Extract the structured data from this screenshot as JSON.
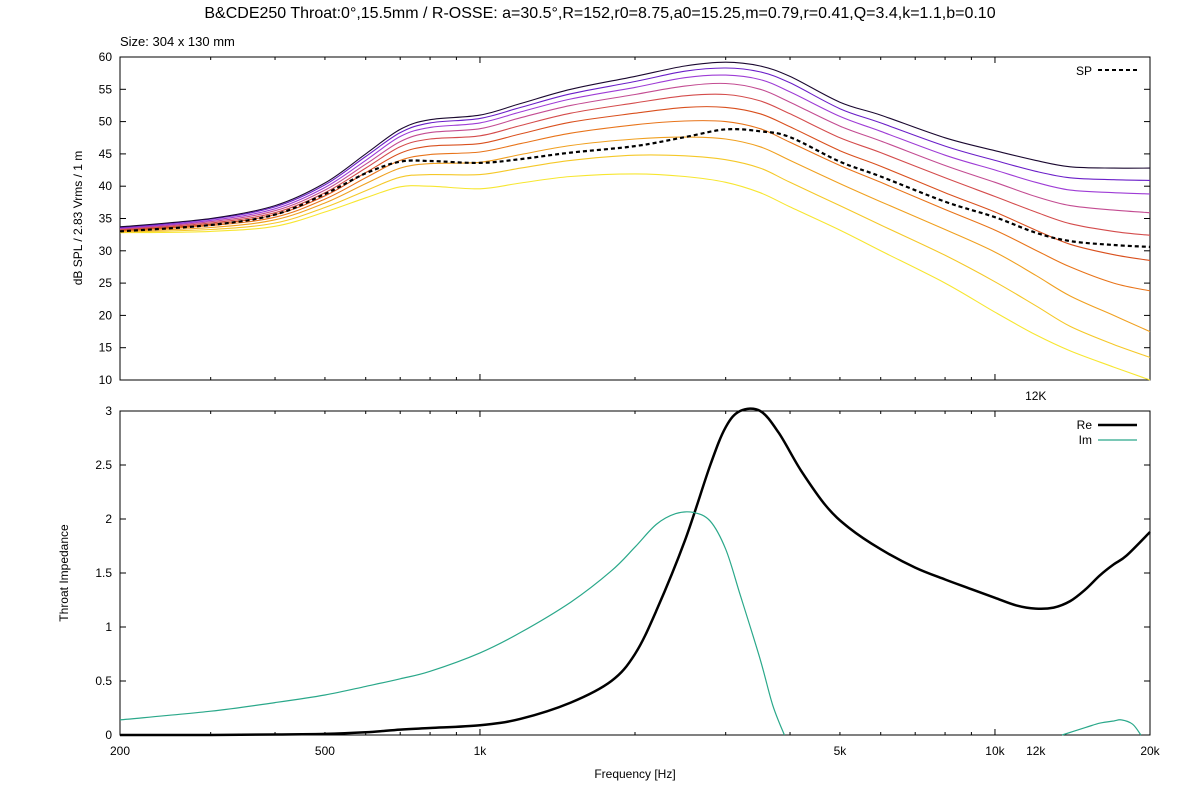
{
  "chart_data": [
    {
      "type": "line",
      "title": "B&CDE250 Throat:0°,15.5mm / R-OSSE: a=30.5°,R=152,r0=8.75,a0=15.25,m=0.79,r=0.41,Q=3.4,k=1.1,b=0.10",
      "subtitle": "Size: 304 x 130 mm",
      "ylabel": "dB SPL / 2.83 Vrms / 1 m",
      "xlabel": "",
      "x_scale": "log",
      "xlim": [
        200,
        20000
      ],
      "ylim": [
        10,
        60
      ],
      "y_ticks": [
        "10",
        "15",
        "20",
        "25",
        "30",
        "35",
        "40",
        "45",
        "50",
        "55",
        "60"
      ],
      "x_tick_labels": [
        {
          "x": 12000,
          "label": "12K"
        }
      ],
      "legend": {
        "position": "top-right",
        "entries": [
          "SP"
        ]
      },
      "x": [
        200,
        300,
        400,
        500,
        600,
        700,
        800,
        1000,
        1200,
        1500,
        2000,
        2500,
        3000,
        3500,
        4000,
        5000,
        6000,
        8000,
        10000,
        12000,
        14000,
        17000,
        20000
      ],
      "series": [
        {
          "name": "",
          "color": "#1a0830",
          "values": [
            33.7,
            35.0,
            37.0,
            40.5,
            45.0,
            48.8,
            50.3,
            51.0,
            52.8,
            55.0,
            57.0,
            58.6,
            59.2,
            58.6,
            57.0,
            53.0,
            51.0,
            47.5,
            45.5,
            44.0,
            43.0,
            42.8,
            42.8
          ]
        },
        {
          "name": "",
          "color": "#6a1ec8",
          "values": [
            33.6,
            34.9,
            36.8,
            40.2,
            44.6,
            48.3,
            49.8,
            50.5,
            52.2,
            54.3,
            56.2,
            57.8,
            58.3,
            57.7,
            56.0,
            52.0,
            49.8,
            46.2,
            44.0,
            42.3,
            41.3,
            41.0,
            40.9
          ]
        },
        {
          "name": "",
          "color": "#9e3cd6",
          "values": [
            33.5,
            34.7,
            36.5,
            39.8,
            44.0,
            47.7,
            49.1,
            49.8,
            51.5,
            53.5,
            55.3,
            56.8,
            57.2,
            56.5,
            54.6,
            50.8,
            48.5,
            44.8,
            42.5,
            40.6,
            39.4,
            39.0,
            38.8
          ]
        },
        {
          "name": "",
          "color": "#c34c92",
          "values": [
            33.4,
            34.5,
            36.2,
            39.4,
            43.4,
            46.9,
            48.3,
            48.9,
            50.6,
            52.5,
            54.2,
            55.5,
            55.9,
            55.0,
            53.0,
            49.3,
            47.0,
            43.2,
            40.6,
            38.4,
            37.0,
            36.3,
            35.9
          ]
        },
        {
          "name": "",
          "color": "#d44c4c",
          "values": [
            33.3,
            34.3,
            35.9,
            39.0,
            42.8,
            46.1,
            47.3,
            47.8,
            49.4,
            51.3,
            52.9,
            54.0,
            54.2,
            53.2,
            51.2,
            47.5,
            45.2,
            41.3,
            38.4,
            36.0,
            34.2,
            33.0,
            32.4
          ]
        },
        {
          "name": "",
          "color": "#d9501e",
          "values": [
            33.2,
            34.1,
            35.6,
            38.5,
            42.1,
            45.1,
            46.2,
            46.6,
            48.1,
            49.9,
            51.3,
            52.2,
            52.2,
            51.2,
            49.2,
            45.5,
            43.1,
            39.0,
            36.0,
            33.2,
            31.0,
            29.4,
            28.5
          ]
        },
        {
          "name": "",
          "color": "#e8741a",
          "values": [
            33.1,
            33.9,
            35.2,
            38.0,
            41.3,
            44.0,
            44.9,
            45.3,
            46.6,
            48.2,
            49.5,
            50.1,
            50.0,
            48.9,
            46.8,
            43.2,
            40.6,
            36.4,
            33.2,
            30.1,
            27.5,
            25.0,
            23.8
          ]
        },
        {
          "name": "",
          "color": "#f0a020",
          "values": [
            33.0,
            33.6,
            34.8,
            37.4,
            40.4,
            42.8,
            43.5,
            43.7,
            44.9,
            46.3,
            47.3,
            47.6,
            47.3,
            46.1,
            44.0,
            40.4,
            37.6,
            33.3,
            29.8,
            26.2,
            23.0,
            20.0,
            17.5
          ]
        },
        {
          "name": "",
          "color": "#f5c828",
          "values": [
            32.9,
            33.3,
            34.3,
            36.7,
            39.3,
            41.4,
            41.8,
            41.8,
            42.8,
            44.0,
            44.8,
            44.7,
            44.1,
            42.8,
            40.6,
            37.0,
            34.0,
            29.3,
            25.2,
            21.5,
            18.3,
            15.5,
            13.5
          ]
        },
        {
          "name": "",
          "color": "#f7e630",
          "values": [
            32.8,
            33.0,
            33.8,
            36.0,
            38.2,
            39.9,
            40.0,
            39.6,
            40.5,
            41.5,
            41.9,
            41.5,
            40.6,
            39.0,
            36.8,
            33.2,
            30.0,
            25.0,
            20.5,
            17.0,
            14.5,
            12.0,
            10.0
          ]
        }
      ],
      "sp_series": {
        "name": "SP",
        "values": [
          33.0,
          34.0,
          35.6,
          38.8,
          42.0,
          43.8,
          43.9,
          43.6,
          44.2,
          45.2,
          46.2,
          47.6,
          48.8,
          48.5,
          47.6,
          43.8,
          41.5,
          37.6,
          35.2,
          32.8,
          31.5,
          30.9,
          30.6
        ]
      }
    },
    {
      "type": "line",
      "title": "",
      "xlabel": "Frequency [Hz]",
      "ylabel": "Throat Impedance",
      "x_scale": "log",
      "xlim": [
        200,
        20000
      ],
      "ylim": [
        0,
        3
      ],
      "y_ticks": [
        "0",
        "0.5",
        "1",
        "1.5",
        "2",
        "2.5",
        "3"
      ],
      "x_tick_labels": [
        {
          "x": 200,
          "label": "200"
        },
        {
          "x": 500,
          "label": "500"
        },
        {
          "x": 1000,
          "label": "1k"
        },
        {
          "x": 5000,
          "label": "5k"
        },
        {
          "x": 10000,
          "label": "10k"
        },
        {
          "x": 12000,
          "label": "12k"
        },
        {
          "x": 20000,
          "label": "20k"
        }
      ],
      "legend": {
        "position": "top-right",
        "entries": [
          "Re",
          "Im"
        ]
      },
      "series": [
        {
          "name": "Re",
          "color": "#000000",
          "x": [
            200,
            300,
            400,
            500,
            600,
            700,
            800,
            1000,
            1200,
            1500,
            1800,
            2000,
            2200,
            2500,
            2800,
            3000,
            3200,
            3500,
            3800,
            4200,
            4700,
            5200,
            6000,
            7000,
            8000,
            9000,
            10000,
            11000,
            12000,
            13000,
            14000,
            15000,
            16000,
            17000,
            18000,
            20000
          ],
          "values": [
            0.0,
            0.0,
            0.005,
            0.01,
            0.025,
            0.05,
            0.065,
            0.09,
            0.15,
            0.3,
            0.5,
            0.75,
            1.15,
            1.8,
            2.5,
            2.85,
            3.02,
            3.02,
            2.8,
            2.45,
            2.12,
            1.92,
            1.72,
            1.55,
            1.44,
            1.35,
            1.27,
            1.2,
            1.17,
            1.18,
            1.24,
            1.35,
            1.48,
            1.58,
            1.66,
            1.88
          ]
        },
        {
          "name": "Im",
          "color": "#2aa88a",
          "x": [
            200,
            300,
            400,
            500,
            600,
            700,
            800,
            1000,
            1200,
            1500,
            1800,
            2000,
            2200,
            2400,
            2600,
            2800,
            3000,
            3200,
            3500,
            3700,
            3900
          ],
          "values": [
            0.14,
            0.22,
            0.3,
            0.37,
            0.45,
            0.52,
            0.59,
            0.76,
            0.95,
            1.23,
            1.52,
            1.74,
            1.95,
            2.05,
            2.06,
            1.98,
            1.72,
            1.3,
            0.7,
            0.28,
            0.0
          ]
        },
        {
          "name": "Im",
          "color": "#2aa88a",
          "x": [
            13500,
            15000,
            16000,
            17000,
            17600,
            18500,
            19200
          ],
          "values": [
            0.0,
            0.07,
            0.11,
            0.13,
            0.14,
            0.1,
            0.0
          ]
        }
      ]
    }
  ]
}
